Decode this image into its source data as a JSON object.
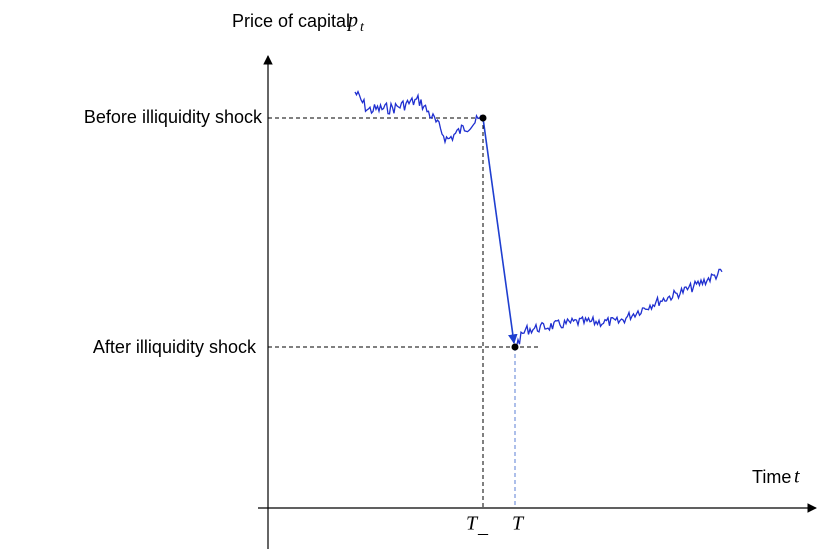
{
  "y_axis_label": {
    "text": "Price of capital",
    "symbol": "p",
    "subscript": "t"
  },
  "x_axis_label": {
    "text": "Time",
    "symbol": "t"
  },
  "levels": [
    "Before illiquidity shock",
    "After illiquidity shock"
  ],
  "time_marks": [
    {
      "symbol": "T",
      "subscript": "_"
    },
    {
      "symbol": "T"
    }
  ]
}
